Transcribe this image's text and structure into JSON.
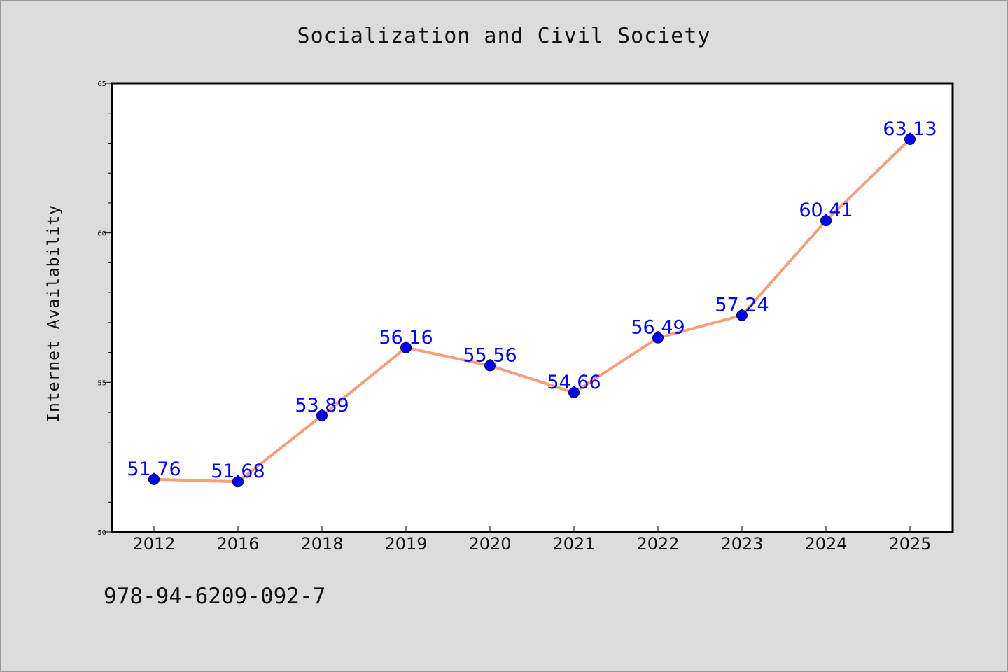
{
  "isbn_text": "978-94-6209-092-7",
  "chart_data": {
    "type": "line",
    "title": "Socialization and Civil Society",
    "xlabel": "",
    "ylabel": "Internet Availability",
    "categories": [
      "2012",
      "2016",
      "2018",
      "2019",
      "2020",
      "2021",
      "2022",
      "2023",
      "2024",
      "2025"
    ],
    "series": [
      {
        "values": [
          51.76,
          51.68,
          53.89,
          56.16,
          55.56,
          54.66,
          56.49,
          57.24,
          60.41,
          63.13
        ],
        "labels": [
          "51.76",
          "51.68",
          "53.89",
          "56.16",
          "55.56",
          "54.66",
          "56.49",
          "57.24",
          "60.41",
          "63.13"
        ],
        "line_color": "#f4a07c",
        "marker_color": "#0000ff"
      }
    ],
    "ylim": [
      50,
      65
    ],
    "yticks": [
      "50",
      "55",
      "60",
      "65"
    ],
    "grid": false,
    "legend": "none",
    "data_label_color": "#0000ff",
    "plot_background": "#ffffff",
    "page_background": "#dcdcdc"
  }
}
